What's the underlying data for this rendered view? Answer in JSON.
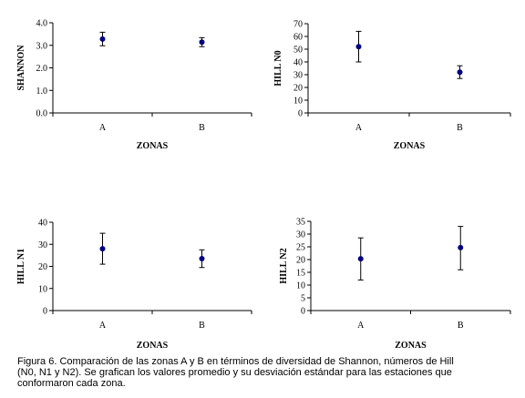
{
  "chart_data": [
    {
      "type": "scatter",
      "error_bars": true,
      "ylabel": "SHANNON",
      "xlabel": "ZONAS",
      "categories": [
        "A",
        "B"
      ],
      "values": [
        3.28,
        3.14
      ],
      "error_low": [
        2.98,
        2.94
      ],
      "error_high": [
        3.58,
        3.34
      ],
      "ylim": [
        0.0,
        4.0
      ],
      "yticks": [
        "0.0",
        "1.0",
        "2.0",
        "3.0",
        "4.0"
      ],
      "marker_color": "#000080",
      "grid": false
    },
    {
      "type": "scatter",
      "error_bars": true,
      "ylabel": "HILL N0",
      "xlabel": "ZONAS",
      "categories": [
        "A",
        "B"
      ],
      "values": [
        52,
        32
      ],
      "error_low": [
        40,
        27
      ],
      "error_high": [
        64,
        37
      ],
      "ylim": [
        0,
        70
      ],
      "yticks": [
        "0",
        "10",
        "20",
        "30",
        "40",
        "50",
        "60",
        "70"
      ],
      "marker_color": "#000080",
      "grid": false
    },
    {
      "type": "scatter",
      "error_bars": true,
      "ylabel": "HILL N1",
      "xlabel": "ZONAS",
      "categories": [
        "A",
        "B"
      ],
      "values": [
        28,
        23.5
      ],
      "error_low": [
        21,
        19.5
      ],
      "error_high": [
        35,
        27.5
      ],
      "ylim": [
        0,
        40
      ],
      "yticks": [
        "0",
        "10",
        "20",
        "30",
        "40"
      ],
      "marker_color": "#000080",
      "grid": false
    },
    {
      "type": "scatter",
      "error_bars": true,
      "ylabel": "HILL N2",
      "xlabel": "ZONAS",
      "categories": [
        "A",
        "B"
      ],
      "values": [
        20.3,
        24.7
      ],
      "error_low": [
        12,
        16
      ],
      "error_high": [
        28.5,
        33
      ],
      "ylim": [
        0,
        35
      ],
      "yticks": [
        "0",
        "5",
        "10",
        "15",
        "20",
        "25",
        "30",
        "35"
      ],
      "marker_color": "#000080",
      "grid": false
    }
  ],
  "caption": {
    "line1": "Figura 6. Comparación de las zonas A y B en términos de diversidad de Shannon, números de Hill",
    "line2": "(N0, N1 y N2). Se grafican los valores promedio y su desviación estándar para las estaciones que",
    "line3": "conformaron cada zona."
  }
}
